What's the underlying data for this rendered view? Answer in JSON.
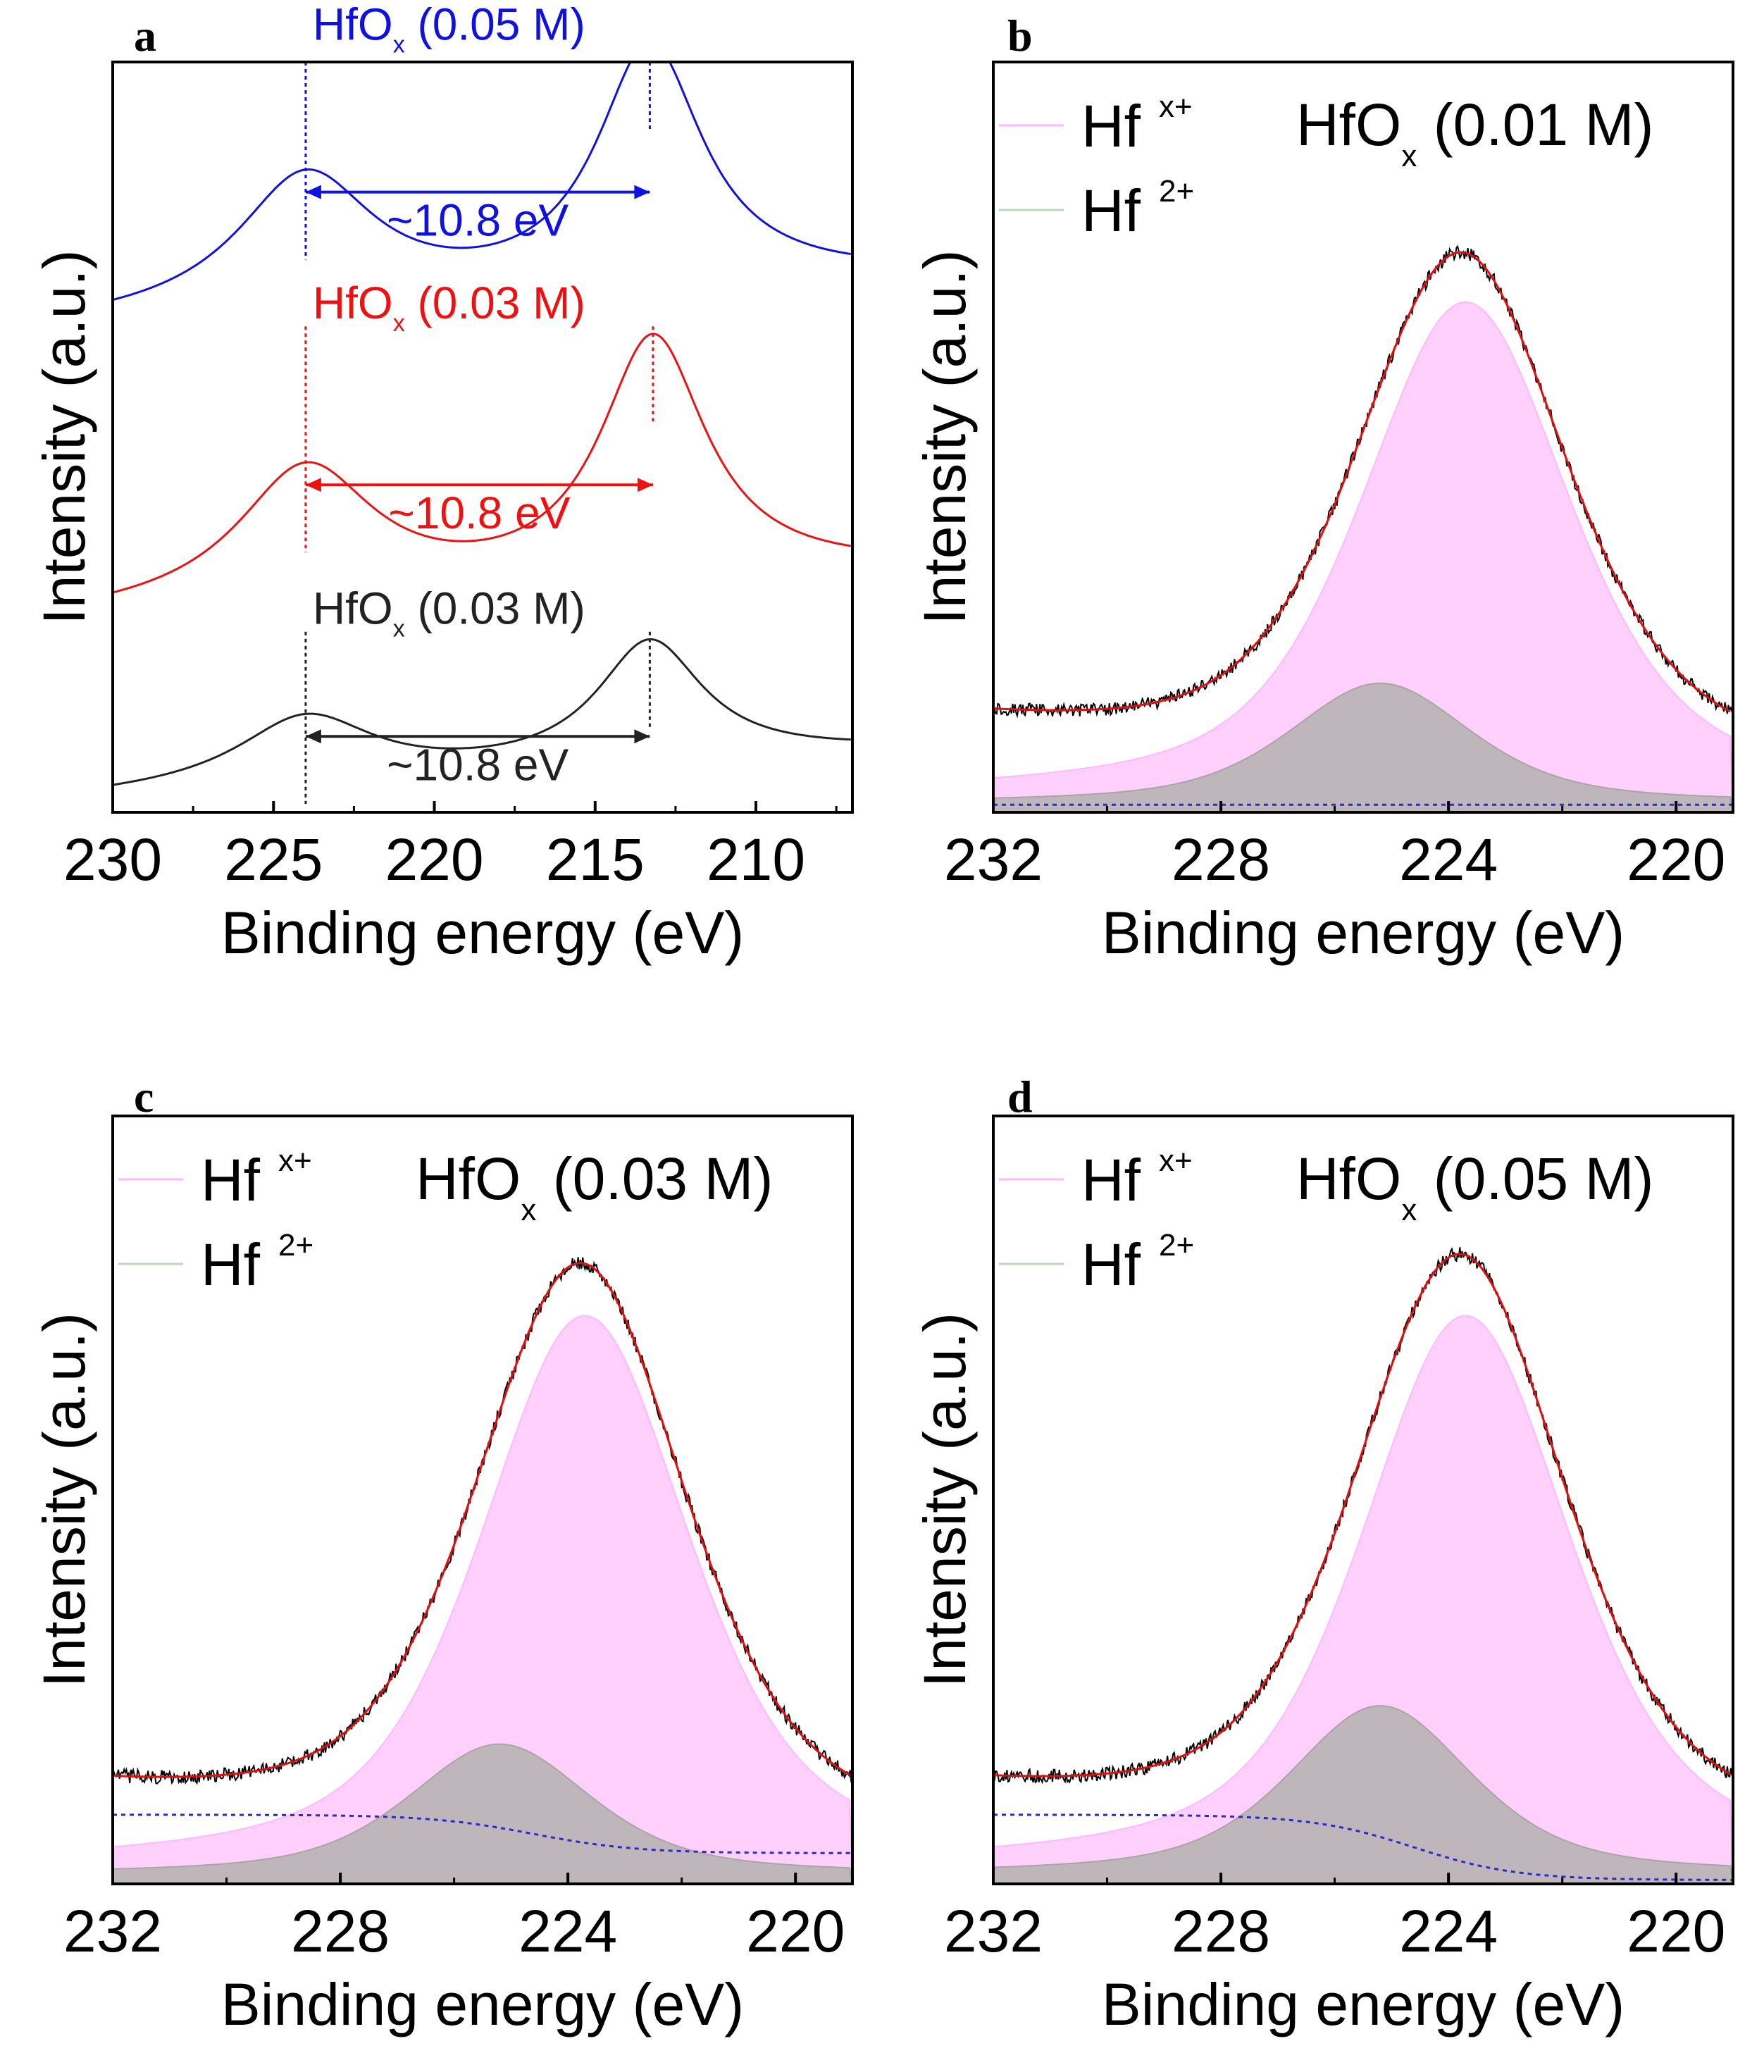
{
  "chart_data": [
    {
      "panel": "a",
      "type": "line",
      "xlabel": "Binding energy (eV)",
      "ylabel": "Intensity (a.u.)",
      "xlim": [
        230,
        207
      ],
      "ylim": [
        0,
        1
      ],
      "xticks": [
        230,
        225,
        220,
        215,
        210
      ],
      "series": [
        {
          "name": "HfOx (0.05 M)",
          "label_main": "HfO",
          "label_sub": "x",
          "label_rest": " (0.05 M)",
          "color": "#1010e0",
          "offset": 0.65,
          "peaks": [
            224.0,
            213.3
          ],
          "separation": "~10.8 eV"
        },
        {
          "name": "HfOx (0.03 M)",
          "label_main": "HfO",
          "label_sub": "x",
          "label_rest": " (0.03 M)",
          "color": "#ee1111",
          "offset": 0.26,
          "peaks": [
            224.0,
            213.2
          ],
          "separation": "~10.8 eV"
        },
        {
          "name": "HfOx (0.03 M)",
          "label_main": "HfO",
          "label_sub": "x",
          "label_rest": " (0.03 M)",
          "color": "#222222",
          "offset": 0.02,
          "peaks": [
            224.0,
            213.3
          ],
          "separation": "~10.8 eV"
        }
      ]
    },
    {
      "panel": "b",
      "type": "area",
      "title_main": "HfO",
      "title_sub": "x",
      "title_rest": " (0.01 M)",
      "xlabel": "Binding energy (eV)",
      "ylabel": "Intensity (a.u.)",
      "xlim": [
        232,
        219
      ],
      "ylim": [
        0,
        1
      ],
      "xticks": [
        232,
        228,
        224,
        220
      ],
      "legend": [
        {
          "main": "Hf",
          "sup": "x+",
          "color": "#ffb8ff"
        },
        {
          "main": "Hf",
          "sup": "2+",
          "color": "#b8d8b8"
        }
      ],
      "components": {
        "hfx_center": 223.7,
        "hfx_height": 0.66,
        "hf2_center": 225.2,
        "hf2_height": 0.16,
        "background": "flat"
      }
    },
    {
      "panel": "c",
      "type": "area",
      "title_main": "HfO",
      "title_sub": "x",
      "title_rest": " (0.03 M)",
      "xlabel": "Binding energy (eV)",
      "ylabel": "Intensity (a.u.)",
      "xlim": [
        232,
        219
      ],
      "ylim": [
        0,
        1
      ],
      "xticks": [
        232,
        228,
        224,
        220
      ],
      "legend": [
        {
          "main": "Hf",
          "sup": "x+",
          "color": "#ffb8ff"
        },
        {
          "main": "Hf",
          "sup": "2+",
          "color": "#b8d8b8"
        }
      ],
      "components": {
        "hfx_center": 223.7,
        "hfx_height": 0.72,
        "hf2_center": 225.2,
        "hf2_height": 0.17,
        "background": "step"
      }
    },
    {
      "panel": "d",
      "type": "area",
      "title_main": "HfO",
      "title_sub": "x",
      "title_rest": " (0.05 M)",
      "xlabel": "Binding energy (eV)",
      "ylabel": "Intensity (a.u.)",
      "xlim": [
        232,
        219
      ],
      "ylim": [
        0,
        1
      ],
      "xticks": [
        232,
        228,
        224,
        220
      ],
      "legend": [
        {
          "main": "Hf",
          "sup": "x+",
          "color": "#ffb8ff"
        },
        {
          "main": "Hf",
          "sup": "2+",
          "color": "#b8d8b8"
        }
      ],
      "components": {
        "hfx_center": 223.7,
        "hfx_height": 0.72,
        "hf2_center": 225.2,
        "hf2_height": 0.22,
        "background": "step-down"
      }
    }
  ]
}
